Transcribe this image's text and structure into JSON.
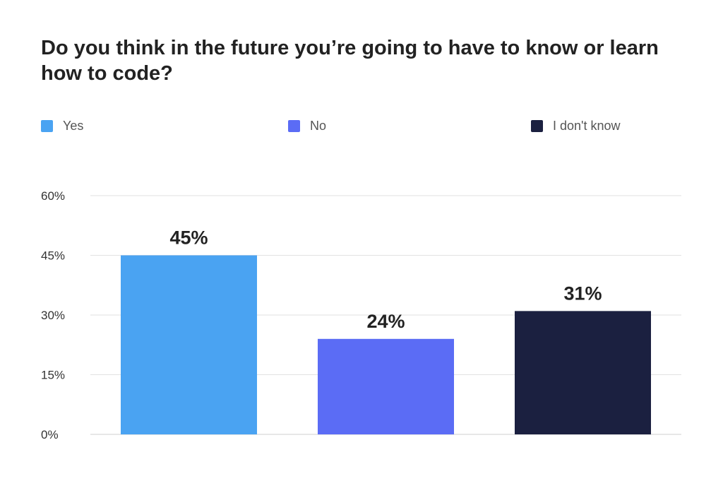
{
  "chart_data": {
    "type": "bar",
    "title": "Do you think in the future you’re going to have to know or learn how to code?",
    "categories": [
      "Yes",
      "No",
      "I don't know"
    ],
    "values": [
      45,
      24,
      31
    ],
    "data_labels": [
      "45%",
      "24%",
      "31%"
    ],
    "colors": [
      "#4AA3F2",
      "#5B6CF5",
      "#1B2040"
    ],
    "legend": [
      "Yes",
      "No",
      "I don't know"
    ],
    "legend_position": "top",
    "ylim": [
      0,
      60
    ],
    "yticks": [
      0,
      15,
      30,
      45,
      60
    ],
    "ytick_labels": [
      "0%",
      "15%",
      "30%",
      "45%",
      "60%"
    ],
    "grid": true,
    "xlabel": "",
    "ylabel": ""
  }
}
